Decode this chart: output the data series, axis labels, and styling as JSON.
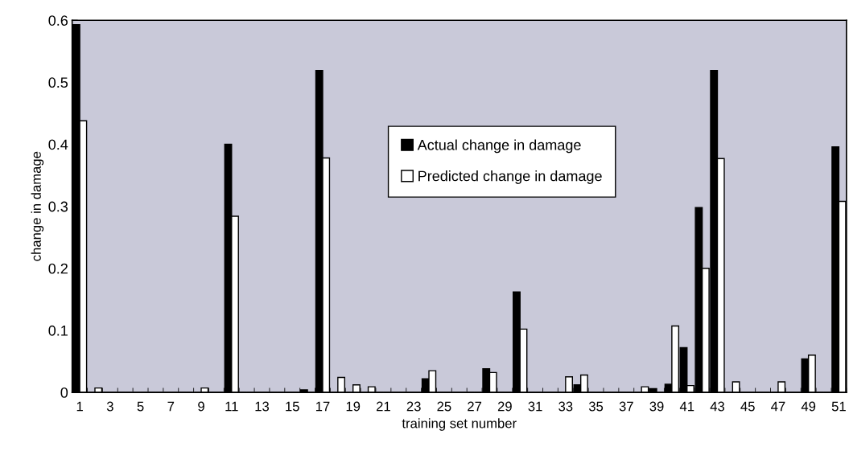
{
  "chart_data": {
    "type": "bar",
    "xlabel": "training set number",
    "ylabel": "change in damage",
    "categories": [
      "1",
      null,
      "3",
      null,
      "5",
      null,
      "7",
      null,
      "9",
      null,
      "11",
      null,
      "13",
      null,
      "15",
      null,
      "17",
      null,
      "19",
      null,
      "21",
      null,
      "23",
      null,
      "25",
      null,
      "27",
      null,
      "29",
      null,
      "31",
      null,
      "33",
      null,
      "35",
      null,
      "37",
      null,
      "39",
      null,
      "41",
      null,
      "43",
      null,
      "45",
      null,
      "47",
      null,
      "49",
      null,
      "51"
    ],
    "series": [
      {
        "name": "Actual change in damage",
        "color": "#000000",
        "values": [
          0.593,
          0,
          0,
          0,
          0,
          0,
          0,
          0,
          0,
          0,
          0.4,
          0,
          0,
          0,
          0,
          0.004,
          0.519,
          0,
          0,
          0,
          0,
          0,
          0,
          0.022,
          0,
          0,
          0,
          0.038,
          0,
          0.162,
          0,
          0,
          0,
          0.012,
          0,
          0,
          0,
          0,
          0.006,
          0.013,
          0.072,
          0.298,
          0.519,
          0,
          0,
          0,
          0,
          0,
          0.054,
          0,
          0.396
        ]
      },
      {
        "name": "Predicted change in damage",
        "color": "#ffffff",
        "values": [
          0.438,
          0.007,
          0,
          0,
          0,
          0,
          0,
          0,
          0.007,
          0,
          0.284,
          0,
          0,
          0,
          0,
          0,
          0.378,
          0.024,
          0.012,
          0.009,
          0,
          0,
          0,
          0.035,
          0,
          0,
          0,
          0.032,
          0,
          0.102,
          0,
          0,
          0.025,
          0.028,
          0,
          0,
          0,
          0.009,
          0,
          0.107,
          0.011,
          0.2,
          0.377,
          0.017,
          0,
          0,
          0.017,
          0,
          0.06,
          0,
          0.308
        ]
      }
    ],
    "ylim": [
      0,
      0.6
    ],
    "yticks": [
      0,
      0.1,
      0.2,
      0.3,
      0.4,
      0.5,
      0.6
    ],
    "grid": false,
    "legend": "center"
  }
}
